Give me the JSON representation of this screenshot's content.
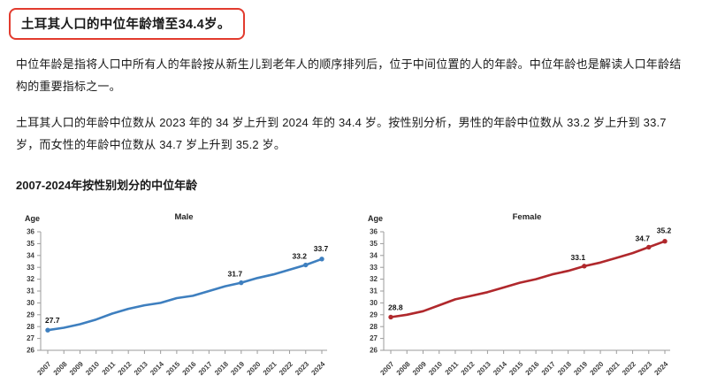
{
  "page": {
    "headline": "土耳其人口的中位年龄增至34.4岁。",
    "paragraphs": [
      "中位年龄是指将人口中所有人的年龄按从新生儿到老年人的顺序排列后，位于中间位置的人的年龄。中位年龄也是解读人口年龄结构的重要指标之一。",
      "土耳其人口的年龄中位数从 2023 年的 34 岁上升到 2024 年的 34.4 岁。按性别分析，男性的年龄中位数从 33.2 岁上升到 33.7 岁，而女性的年龄中位数从 34.7 岁上升到 35.2 岁。"
    ],
    "section_heading": "2007-2024年按性别划分的中位年龄"
  },
  "colors": {
    "headline_border": "#E23B2E",
    "male_line": "#3E7FBF",
    "female_line": "#B0282C",
    "axis": "#9B9B9B"
  },
  "chart_data": [
    {
      "type": "line",
      "title": "Male",
      "ylabel": "Age",
      "ylim": [
        26,
        36
      ],
      "y_tick_step": 1,
      "grid": false,
      "legend": "none",
      "line_color": "#3E7FBF",
      "x": [
        2007,
        2008,
        2009,
        2010,
        2011,
        2012,
        2013,
        2014,
        2015,
        2016,
        2017,
        2018,
        2019,
        2020,
        2021,
        2022,
        2023,
        2024
      ],
      "values": [
        27.7,
        27.9,
        28.2,
        28.6,
        29.1,
        29.5,
        29.8,
        30.0,
        30.4,
        30.6,
        31.0,
        31.4,
        31.7,
        32.1,
        32.4,
        32.8,
        33.2,
        33.7
      ],
      "labeled_points": [
        {
          "x": 2007,
          "value": 27.7,
          "label": "27.7"
        },
        {
          "x": 2019,
          "value": 31.7,
          "label": "31.7"
        },
        {
          "x": 2023,
          "value": 33.2,
          "label": "33.2"
        },
        {
          "x": 2024,
          "value": 33.7,
          "label": "33.7"
        }
      ]
    },
    {
      "type": "line",
      "title": "Female",
      "ylabel": "Age",
      "ylim": [
        26,
        36
      ],
      "y_tick_step": 1,
      "grid": false,
      "legend": "none",
      "line_color": "#B0282C",
      "x": [
        2007,
        2008,
        2009,
        2010,
        2011,
        2012,
        2013,
        2014,
        2015,
        2016,
        2017,
        2018,
        2019,
        2020,
        2021,
        2022,
        2023,
        2024
      ],
      "values": [
        28.8,
        29.0,
        29.3,
        29.8,
        30.3,
        30.6,
        30.9,
        31.3,
        31.7,
        32.0,
        32.4,
        32.7,
        33.1,
        33.4,
        33.8,
        34.2,
        34.7,
        35.2
      ],
      "labeled_points": [
        {
          "x": 2007,
          "value": 28.8,
          "label": "28.8"
        },
        {
          "x": 2019,
          "value": 33.1,
          "label": "33.1"
        },
        {
          "x": 2023,
          "value": 34.7,
          "label": "34.7"
        },
        {
          "x": 2024,
          "value": 35.2,
          "label": "35.2"
        }
      ]
    }
  ]
}
